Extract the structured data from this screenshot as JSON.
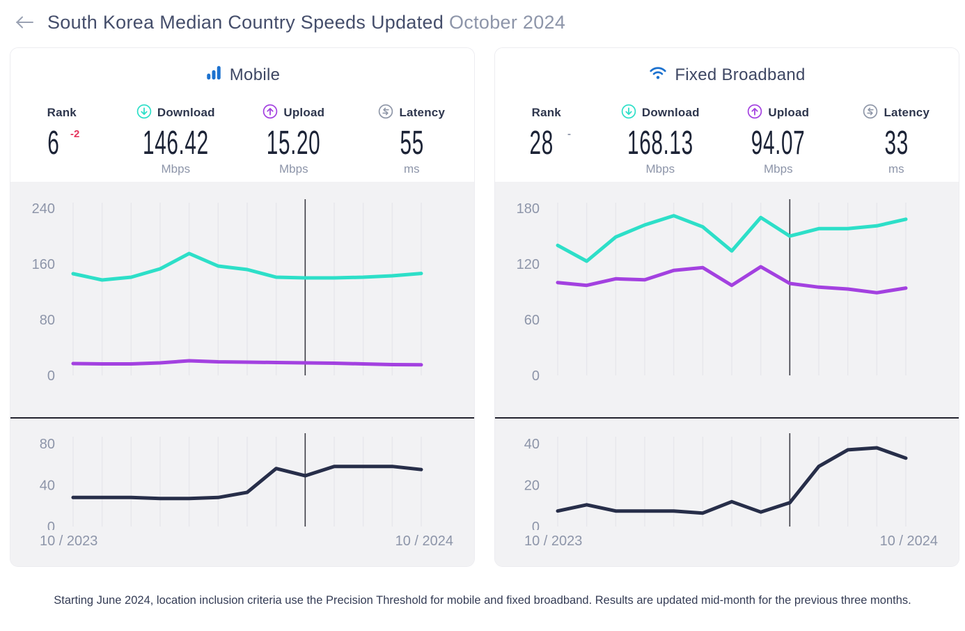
{
  "header": {
    "title": "South Korea Median Country Speeds Updated",
    "title_period": "October 2024"
  },
  "colors": {
    "accent_teal": "#2ddfc8",
    "accent_purple": "#a341e0",
    "brand_blue": "#1d72cf",
    "navy": "#272e49",
    "rank_down_red": "#e5345c",
    "muted_gray": "#8d95a9",
    "chart_bg": "#f2f2f4",
    "gridline": "#e7e7ec",
    "marker": "#3c3c45",
    "text_dark": "#2e364d"
  },
  "panels": [
    {
      "title": "Mobile",
      "icon": "mobile-signal-bars-icon",
      "stats": [
        {
          "label": "Rank",
          "value": "6",
          "change": "-2",
          "change_class": "chg chg-down",
          "unit": ""
        },
        {
          "label": "Download",
          "icon": "download-circle-icon",
          "value": "146.42",
          "unit": "Mbps"
        },
        {
          "label": "Upload",
          "icon": "upload-circle-icon",
          "value": "15.20",
          "unit": "Mbps"
        },
        {
          "label": "Latency",
          "icon": "latency-circle-icon",
          "value": "55",
          "unit": "ms"
        }
      ]
    },
    {
      "title": "Fixed Broadband",
      "icon": "wifi-icon",
      "stats": [
        {
          "label": "Rank",
          "value": "28",
          "change": "-",
          "change_class": "chg chg-flat",
          "unit": ""
        },
        {
          "label": "Download",
          "icon": "download-circle-icon",
          "value": "168.13",
          "unit": "Mbps"
        },
        {
          "label": "Upload",
          "icon": "upload-circle-icon",
          "value": "94.07",
          "unit": "Mbps"
        },
        {
          "label": "Latency",
          "icon": "latency-circle-icon",
          "value": "33",
          "unit": "ms"
        }
      ]
    }
  ],
  "chart_data": [
    {
      "panel": "Mobile",
      "type": "line",
      "x": [
        "10/2023",
        "11/2023",
        "12/2023",
        "1/2024",
        "2/2024",
        "3/2024",
        "4/2024",
        "5/2024",
        "6/2024",
        "7/2024",
        "8/2024",
        "9/2024",
        "10/2024"
      ],
      "x_axis_labels": [
        "10 / 2023",
        "10 / 2024"
      ],
      "marker_x": "6/2024",
      "marker_note": "Precision Threshold starts June 2024",
      "grid": "vertical-only",
      "speed_chart": {
        "ylabel": "Mbps",
        "ylim": [
          0,
          240
        ],
        "yticks": [
          240,
          160,
          80,
          0
        ],
        "series": [
          {
            "name": "Download",
            "color": "#2ddfc8",
            "values": [
              146,
              137,
              141,
              153,
              175,
              157,
              152,
              141,
              140,
              140,
              141,
              143,
              146.42
            ]
          },
          {
            "name": "Upload",
            "color": "#a341e0",
            "values": [
              17,
              16.5,
              16.5,
              18,
              21,
              19.5,
              19,
              18.5,
              18,
              17.5,
              16.5,
              15.5,
              15.2
            ]
          }
        ]
      },
      "latency_chart": {
        "ylabel": "ms",
        "ylim": [
          0,
          80
        ],
        "yticks": [
          80,
          40,
          0
        ],
        "series": [
          {
            "name": "Latency",
            "color": "#272e49",
            "values": [
              28,
              28,
              28,
              27,
              27,
              28,
              33,
              56,
              49,
              58,
              58,
              58,
              55
            ]
          }
        ]
      }
    },
    {
      "panel": "Fixed Broadband",
      "type": "line",
      "x": [
        "10/2023",
        "11/2023",
        "12/2023",
        "1/2024",
        "2/2024",
        "3/2024",
        "4/2024",
        "5/2024",
        "6/2024",
        "7/2024",
        "8/2024",
        "9/2024",
        "10/2024"
      ],
      "x_axis_labels": [
        "10 / 2023",
        "10 / 2024"
      ],
      "marker_x": "6/2024",
      "marker_note": "Precision Threshold starts June 2024",
      "grid": "vertical-only",
      "speed_chart": {
        "ylabel": "Mbps",
        "ylim": [
          0,
          180
        ],
        "yticks": [
          180,
          120,
          60,
          0
        ],
        "series": [
          {
            "name": "Download",
            "color": "#2ddfc8",
            "values": [
              140,
              123,
              149,
              162,
              172,
              160,
              134,
              170,
              150,
              158,
              158,
              161,
              168.13
            ]
          },
          {
            "name": "Upload",
            "color": "#a341e0",
            "values": [
              100,
              97,
              104,
              103,
              113,
              116,
              97,
              117,
              99,
              95,
              93,
              89,
              94.07
            ]
          }
        ]
      },
      "latency_chart": {
        "ylabel": "ms",
        "ylim": [
          0,
          40
        ],
        "yticks": [
          40,
          20,
          0
        ],
        "series": [
          {
            "name": "Latency",
            "color": "#272e49",
            "values": [
              7.5,
              10.5,
              7.5,
              7.5,
              7.5,
              6.5,
              12,
              7,
              11.5,
              29,
              37,
              38,
              33
            ]
          }
        ]
      }
    }
  ],
  "footer": {
    "note": "Starting June 2024, location inclusion criteria use the Precision Threshold for mobile and fixed broadband. Results are updated mid-month for the previous three months."
  }
}
